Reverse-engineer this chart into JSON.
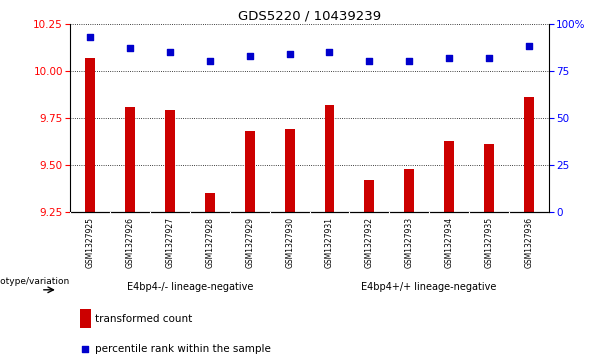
{
  "title": "GDS5220 / 10439239",
  "samples": [
    "GSM1327925",
    "GSM1327926",
    "GSM1327927",
    "GSM1327928",
    "GSM1327929",
    "GSM1327930",
    "GSM1327931",
    "GSM1327932",
    "GSM1327933",
    "GSM1327934",
    "GSM1327935",
    "GSM1327936"
  ],
  "bar_values": [
    10.07,
    9.81,
    9.79,
    9.35,
    9.68,
    9.69,
    9.82,
    9.42,
    9.48,
    9.63,
    9.61,
    9.86
  ],
  "dot_values": [
    93,
    87,
    85,
    80,
    83,
    84,
    85,
    80,
    80,
    82,
    82,
    88
  ],
  "bar_color": "#cc0000",
  "dot_color": "#0000cc",
  "ylim_left": [
    9.25,
    10.25
  ],
  "ylim_right": [
    0,
    100
  ],
  "yticks_left": [
    9.25,
    9.5,
    9.75,
    10.0,
    10.25
  ],
  "yticks_right": [
    0,
    25,
    50,
    75,
    100
  ],
  "ytick_labels_right": [
    "0",
    "25",
    "50",
    "75",
    "100%"
  ],
  "grid_lines": [
    9.5,
    9.75,
    10.0,
    10.25
  ],
  "group1_label": "E4bp4-/- lineage-negative",
  "group2_label": "E4bp4+/+ lineage-negative",
  "group1_indices": [
    0,
    1,
    2,
    3,
    4,
    5
  ],
  "group2_indices": [
    6,
    7,
    8,
    9,
    10,
    11
  ],
  "group_label_prefix": "genotype/variation",
  "legend_bar_label": "transformed count",
  "legend_dot_label": "percentile rank within the sample",
  "group_bg_color": "#7ed87e",
  "sample_bg_color": "#c8c8c8"
}
